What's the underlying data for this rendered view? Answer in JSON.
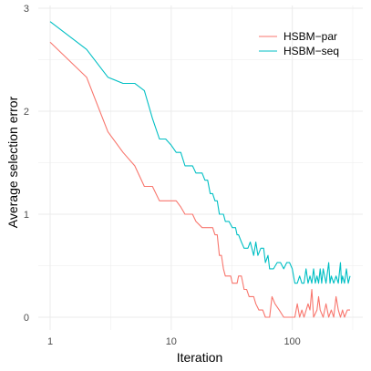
{
  "chart_data": {
    "type": "line",
    "title": "",
    "xlabel": "Iteration",
    "ylabel": "Average selection error",
    "x_scale": "log",
    "xlim": [
      1,
      300
    ],
    "ylim": [
      0,
      3
    ],
    "x_ticks": [
      1,
      10,
      100
    ],
    "x_tick_labels": [
      "1",
      "10",
      "100"
    ],
    "y_ticks": [
      0,
      1,
      2,
      3
    ],
    "y_tick_labels": [
      "0",
      "1",
      "2",
      "3"
    ],
    "grid": true,
    "legend_position": "top-right",
    "series": [
      {
        "name": "HSBM−par",
        "color": "#F8766D",
        "points": [
          [
            1,
            2.67
          ],
          [
            2,
            2.33
          ],
          [
            3,
            1.8
          ],
          [
            4,
            1.6
          ],
          [
            5,
            1.47
          ],
          [
            6,
            1.27
          ],
          [
            7,
            1.27
          ],
          [
            8,
            1.13
          ],
          [
            9,
            1.13
          ],
          [
            11,
            1.13
          ],
          [
            12,
            1.07
          ],
          [
            13,
            1.0
          ],
          [
            15,
            1.0
          ],
          [
            16,
            0.93
          ],
          [
            18,
            0.87
          ],
          [
            22,
            0.87
          ],
          [
            23,
            0.8
          ],
          [
            24,
            0.8
          ],
          [
            25,
            0.6
          ],
          [
            26,
            0.6
          ],
          [
            27,
            0.47
          ],
          [
            28,
            0.4
          ],
          [
            31,
            0.4
          ],
          [
            32,
            0.33
          ],
          [
            35,
            0.33
          ],
          [
            36,
            0.4
          ],
          [
            38,
            0.4
          ],
          [
            40,
            0.27
          ],
          [
            42,
            0.27
          ],
          [
            44,
            0.2
          ],
          [
            48,
            0.2
          ],
          [
            50,
            0.13
          ],
          [
            53,
            0.07
          ],
          [
            57,
            0.07
          ],
          [
            60,
            0.0
          ],
          [
            65,
            0.0
          ],
          [
            68,
            0.2
          ],
          [
            72,
            0.13
          ],
          [
            78,
            0.07
          ],
          [
            85,
            0.0
          ],
          [
            95,
            0.0
          ],
          [
            105,
            0.0
          ],
          [
            110,
            0.13
          ],
          [
            115,
            0.0
          ],
          [
            120,
            0.07
          ],
          [
            125,
            0.0
          ],
          [
            135,
            0.13
          ],
          [
            140,
            0.07
          ],
          [
            145,
            0.27
          ],
          [
            150,
            0.0
          ],
          [
            160,
            0.07
          ],
          [
            165,
            0.2
          ],
          [
            170,
            0.07
          ],
          [
            180,
            0.0
          ],
          [
            190,
            0.13
          ],
          [
            200,
            0.0
          ],
          [
            210,
            0.07
          ],
          [
            220,
            0.0
          ],
          [
            230,
            0.2
          ],
          [
            240,
            0.07
          ],
          [
            250,
            0.0
          ],
          [
            260,
            0.07
          ],
          [
            270,
            0.0
          ],
          [
            285,
            0.07
          ],
          [
            300,
            0.07
          ]
        ]
      },
      {
        "name": "HSBM−seq",
        "color": "#00BFC4",
        "points": [
          [
            1,
            2.87
          ],
          [
            2,
            2.6
          ],
          [
            3,
            2.33
          ],
          [
            4,
            2.27
          ],
          [
            5,
            2.27
          ],
          [
            6,
            2.2
          ],
          [
            7,
            1.93
          ],
          [
            8,
            1.73
          ],
          [
            9,
            1.73
          ],
          [
            10,
            1.67
          ],
          [
            11,
            1.6
          ],
          [
            12,
            1.6
          ],
          [
            13,
            1.47
          ],
          [
            15,
            1.47
          ],
          [
            16,
            1.4
          ],
          [
            18,
            1.4
          ],
          [
            19,
            1.33
          ],
          [
            20,
            1.33
          ],
          [
            21,
            1.2
          ],
          [
            22,
            1.2
          ],
          [
            23,
            1.13
          ],
          [
            24,
            1.13
          ],
          [
            25,
            1.0
          ],
          [
            27,
            1.0
          ],
          [
            28,
            0.93
          ],
          [
            30,
            0.93
          ],
          [
            32,
            0.87
          ],
          [
            34,
            0.87
          ],
          [
            35,
            0.8
          ],
          [
            36,
            0.8
          ],
          [
            38,
            0.73
          ],
          [
            40,
            0.67
          ],
          [
            43,
            0.67
          ],
          [
            45,
            0.73
          ],
          [
            48,
            0.6
          ],
          [
            50,
            0.73
          ],
          [
            52,
            0.6
          ],
          [
            55,
            0.67
          ],
          [
            58,
            0.67
          ],
          [
            60,
            0.53
          ],
          [
            63,
            0.6
          ],
          [
            65,
            0.47
          ],
          [
            70,
            0.47
          ],
          [
            75,
            0.53
          ],
          [
            80,
            0.53
          ],
          [
            85,
            0.47
          ],
          [
            90,
            0.53
          ],
          [
            95,
            0.53
          ],
          [
            100,
            0.47
          ],
          [
            105,
            0.33
          ],
          [
            110,
            0.33
          ],
          [
            115,
            0.4
          ],
          [
            120,
            0.33
          ],
          [
            125,
            0.33
          ],
          [
            130,
            0.47
          ],
          [
            135,
            0.33
          ],
          [
            140,
            0.4
          ],
          [
            145,
            0.33
          ],
          [
            150,
            0.47
          ],
          [
            155,
            0.33
          ],
          [
            160,
            0.4
          ],
          [
            165,
            0.33
          ],
          [
            170,
            0.47
          ],
          [
            175,
            0.33
          ],
          [
            180,
            0.47
          ],
          [
            185,
            0.4
          ],
          [
            190,
            0.33
          ],
          [
            200,
            0.53
          ],
          [
            205,
            0.33
          ],
          [
            210,
            0.4
          ],
          [
            220,
            0.33
          ],
          [
            230,
            0.4
          ],
          [
            240,
            0.33
          ],
          [
            250,
            0.53
          ],
          [
            255,
            0.33
          ],
          [
            260,
            0.4
          ],
          [
            270,
            0.33
          ],
          [
            280,
            0.47
          ],
          [
            290,
            0.33
          ],
          [
            300,
            0.4
          ]
        ]
      }
    ]
  }
}
